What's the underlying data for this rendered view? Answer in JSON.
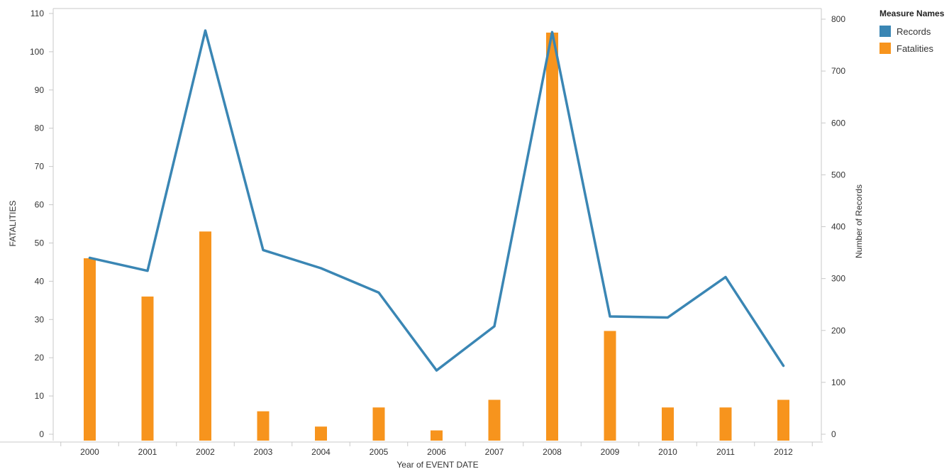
{
  "chart_data": {
    "type": "bar",
    "categories": [
      "2000",
      "2001",
      "2002",
      "2003",
      "2004",
      "2005",
      "2006",
      "2007",
      "2008",
      "2009",
      "2010",
      "2011",
      "2012"
    ],
    "series": [
      {
        "name": "Fatalities",
        "type": "bar",
        "axis": "left",
        "color": "#f7941d",
        "values": [
          46,
          36,
          53,
          6,
          2,
          7,
          1,
          9,
          105,
          27,
          7,
          7,
          9
        ]
      },
      {
        "name": "Records",
        "type": "line",
        "axis": "right",
        "color": "#3a86b4",
        "values": [
          340,
          315,
          778,
          355,
          320,
          273,
          123,
          208,
          775,
          227,
          225,
          303,
          132
        ]
      }
    ],
    "xlabel": "Year of EVENT  DATE",
    "ylabel": "FATALITIES",
    "y2label": "Number of Records",
    "ylim": [
      0,
      110
    ],
    "y2lim": [
      0,
      820
    ],
    "yticks": [
      0,
      10,
      20,
      30,
      40,
      50,
      60,
      70,
      80,
      90,
      100,
      110
    ],
    "y2ticks": [
      0,
      100,
      200,
      300,
      400,
      500,
      600,
      700,
      800
    ],
    "grid": false,
    "legend": {
      "title": "Measure Names",
      "position": "right",
      "items": [
        {
          "label": "Records",
          "color": "#3a86b4"
        },
        {
          "label": "Fatalities",
          "color": "#f7941d"
        }
      ]
    }
  }
}
